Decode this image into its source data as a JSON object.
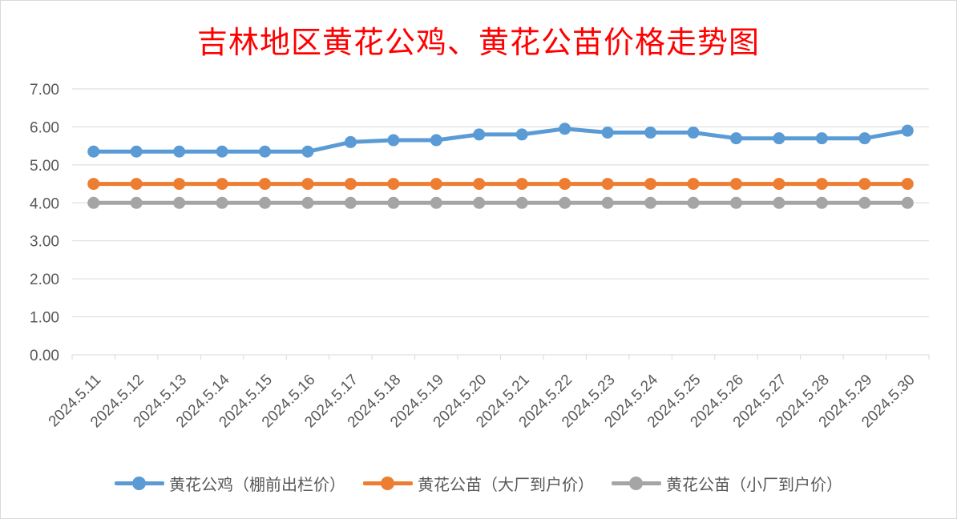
{
  "chart_data": {
    "type": "line",
    "title": "吉林地区黄花公鸡、黄花公苗价格走势图",
    "categories": [
      "2024.5.11",
      "2024.5.12",
      "2024.5.13",
      "2024.5.14",
      "2024.5.15",
      "2024.5.16",
      "2024.5.17",
      "2024.5.18",
      "2024.5.19",
      "2024.5.20",
      "2024.5.21",
      "2024.5.22",
      "2024.5.23",
      "2024.5.24",
      "2024.5.25",
      "2024.5.26",
      "2024.5.27",
      "2024.5.28",
      "2024.5.29",
      "2024.5.30"
    ],
    "yticks": [
      "0.00",
      "1.00",
      "2.00",
      "3.00",
      "4.00",
      "5.00",
      "6.00",
      "7.00"
    ],
    "ylim": [
      0,
      7
    ],
    "grid": true,
    "legend_position": "bottom",
    "series": [
      {
        "name": "黄花公鸡（棚前出栏价）",
        "color": "#5b9bd5",
        "values": [
          5.35,
          5.35,
          5.35,
          5.35,
          5.35,
          5.35,
          5.6,
          5.65,
          5.65,
          5.8,
          5.8,
          5.95,
          5.85,
          5.85,
          5.85,
          5.7,
          5.7,
          5.7,
          5.7,
          5.9
        ]
      },
      {
        "name": "黄花公苗（大厂到户价）",
        "color": "#ed7d31",
        "values": [
          4.5,
          4.5,
          4.5,
          4.5,
          4.5,
          4.5,
          4.5,
          4.5,
          4.5,
          4.5,
          4.5,
          4.5,
          4.5,
          4.5,
          4.5,
          4.5,
          4.5,
          4.5,
          4.5,
          4.5
        ]
      },
      {
        "name": "黄花公苗（小厂到户价）",
        "color": "#a5a5a5",
        "values": [
          4.0,
          4.0,
          4.0,
          4.0,
          4.0,
          4.0,
          4.0,
          4.0,
          4.0,
          4.0,
          4.0,
          4.0,
          4.0,
          4.0,
          4.0,
          4.0,
          4.0,
          4.0,
          4.0,
          4.0
        ]
      }
    ]
  }
}
